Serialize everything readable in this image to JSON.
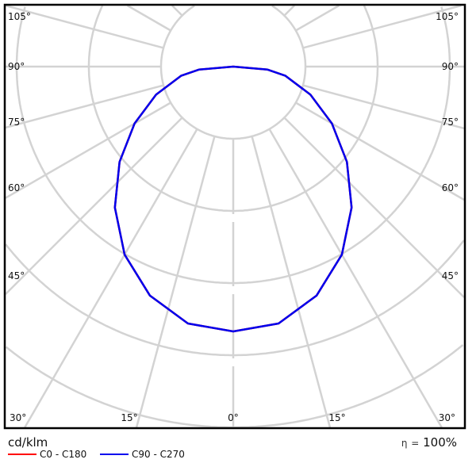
{
  "chart_data": {
    "type": "polar",
    "unit_label": "cd/klm",
    "efficiency_symbol": "η",
    "efficiency_eq": "=",
    "efficiency_value": "100%",
    "angle_labels": [
      "0°",
      "15°",
      "30°",
      "45°",
      "60°",
      "75°",
      "90°",
      "105°"
    ],
    "grid": true,
    "grid_color": "#d3d3d3",
    "intensity_scale": "relative, no ring values printed",
    "angles_deg": [
      0,
      10,
      20,
      30,
      40,
      50,
      60,
      70,
      80,
      85,
      90
    ],
    "series": [
      {
        "name": "C0 - C180",
        "color": "#ff0000",
        "values": [
          1.0,
          0.985,
          0.92,
          0.82,
          0.695,
          0.56,
          0.43,
          0.31,
          0.2,
          0.13,
          0.0
        ]
      },
      {
        "name": "C90 - C270",
        "color": "#0000ee",
        "values": [
          1.0,
          0.985,
          0.92,
          0.82,
          0.695,
          0.56,
          0.43,
          0.31,
          0.2,
          0.13,
          0.0
        ]
      }
    ]
  }
}
